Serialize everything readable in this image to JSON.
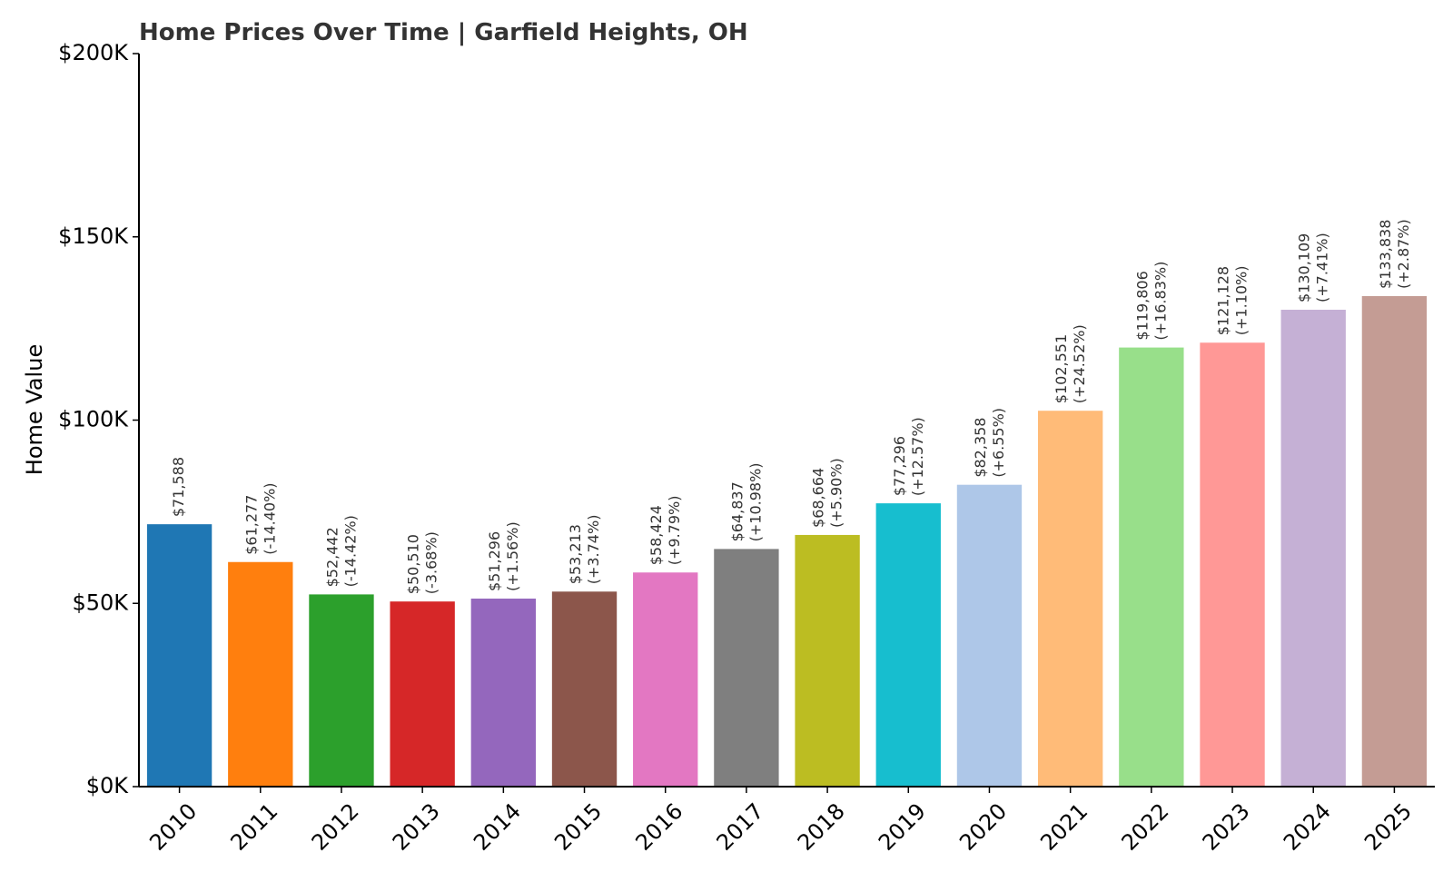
{
  "chart_data": {
    "type": "bar",
    "title": "Home Prices Over Time | Garfield Heights, OH",
    "xlabel": "",
    "ylabel": "Home Value",
    "ylim": [
      0,
      200000
    ],
    "yticks": [
      0,
      50000,
      100000,
      150000,
      200000
    ],
    "ytick_labels": [
      "$0K",
      "$50K",
      "$100K",
      "$150K",
      "$200K"
    ],
    "grid": false,
    "categories": [
      "2010",
      "2011",
      "2012",
      "2013",
      "2014",
      "2015",
      "2016",
      "2017",
      "2018",
      "2019",
      "2020",
      "2021",
      "2022",
      "2023",
      "2024",
      "2025"
    ],
    "values": [
      71588,
      61277,
      52442,
      50510,
      51296,
      53213,
      58424,
      64837,
      68664,
      77296,
      82358,
      102551,
      119806,
      121128,
      130109,
      133838
    ],
    "value_labels": [
      "$71,588",
      "$61,277",
      "$52,442",
      "$50,510",
      "$51,296",
      "$53,213",
      "$58,424",
      "$64,837",
      "$68,664",
      "$77,296",
      "$82,358",
      "$102,551",
      "$119,806",
      "$121,128",
      "$130,109",
      "$133,838"
    ],
    "change_labels": [
      "",
      "(-14.40%)",
      "(-14.42%)",
      "(-3.68%)",
      "(+1.56%)",
      "(+3.74%)",
      "(+9.79%)",
      "(+10.98%)",
      "(+5.90%)",
      "(+12.57%)",
      "(+6.55%)",
      "(+24.52%)",
      "(+16.83%)",
      "(+1.10%)",
      "(+7.41%)",
      "(+2.87%)"
    ],
    "colors": [
      "#1f77b4",
      "#ff7f0e",
      "#2ca02c",
      "#d62728",
      "#9467bd",
      "#8c564b",
      "#e377c2",
      "#7f7f7f",
      "#bcbd22",
      "#17becf",
      "#aec7e8",
      "#ffbb78",
      "#98df8a",
      "#ff9896",
      "#c5b0d5",
      "#c49c94"
    ]
  }
}
